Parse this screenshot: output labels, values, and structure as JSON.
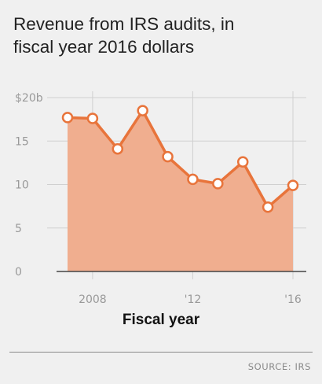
{
  "title": {
    "line1": "Revenue from IRS audits, in",
    "line2": "fiscal year 2016 dollars"
  },
  "source": "SOURCE: IRS",
  "colors": {
    "background": "#f0f0f0",
    "area_fill": "#f0ae8f",
    "line": "#e8743b",
    "marker_fill": "#ffffff",
    "grid": "#d0d0d0",
    "baseline": "#444444"
  },
  "chart_data": {
    "type": "area",
    "title": "Revenue from IRS audits, in fiscal year 2016 dollars",
    "xlabel": "Fiscal year",
    "ylabel": "",
    "x": [
      2007,
      2008,
      2009,
      2010,
      2011,
      2012,
      2013,
      2014,
      2015,
      2016
    ],
    "series": [
      {
        "values": [
          17.7,
          17.6,
          14.1,
          18.5,
          13.2,
          10.6,
          10.1,
          12.6,
          7.4,
          9.9
        ]
      }
    ],
    "ylim": [
      0,
      20
    ],
    "y_ticks": [
      0,
      5,
      10,
      15,
      20
    ],
    "y_tick_labels": [
      "0",
      "5",
      "10",
      "15",
      "$20b"
    ],
    "x_ticks": [
      2008,
      2012,
      2016
    ],
    "x_tick_labels": [
      "2008",
      "'12",
      "'16"
    ],
    "xlim": [
      2007,
      2016
    ],
    "grid": true,
    "legend": "none"
  }
}
